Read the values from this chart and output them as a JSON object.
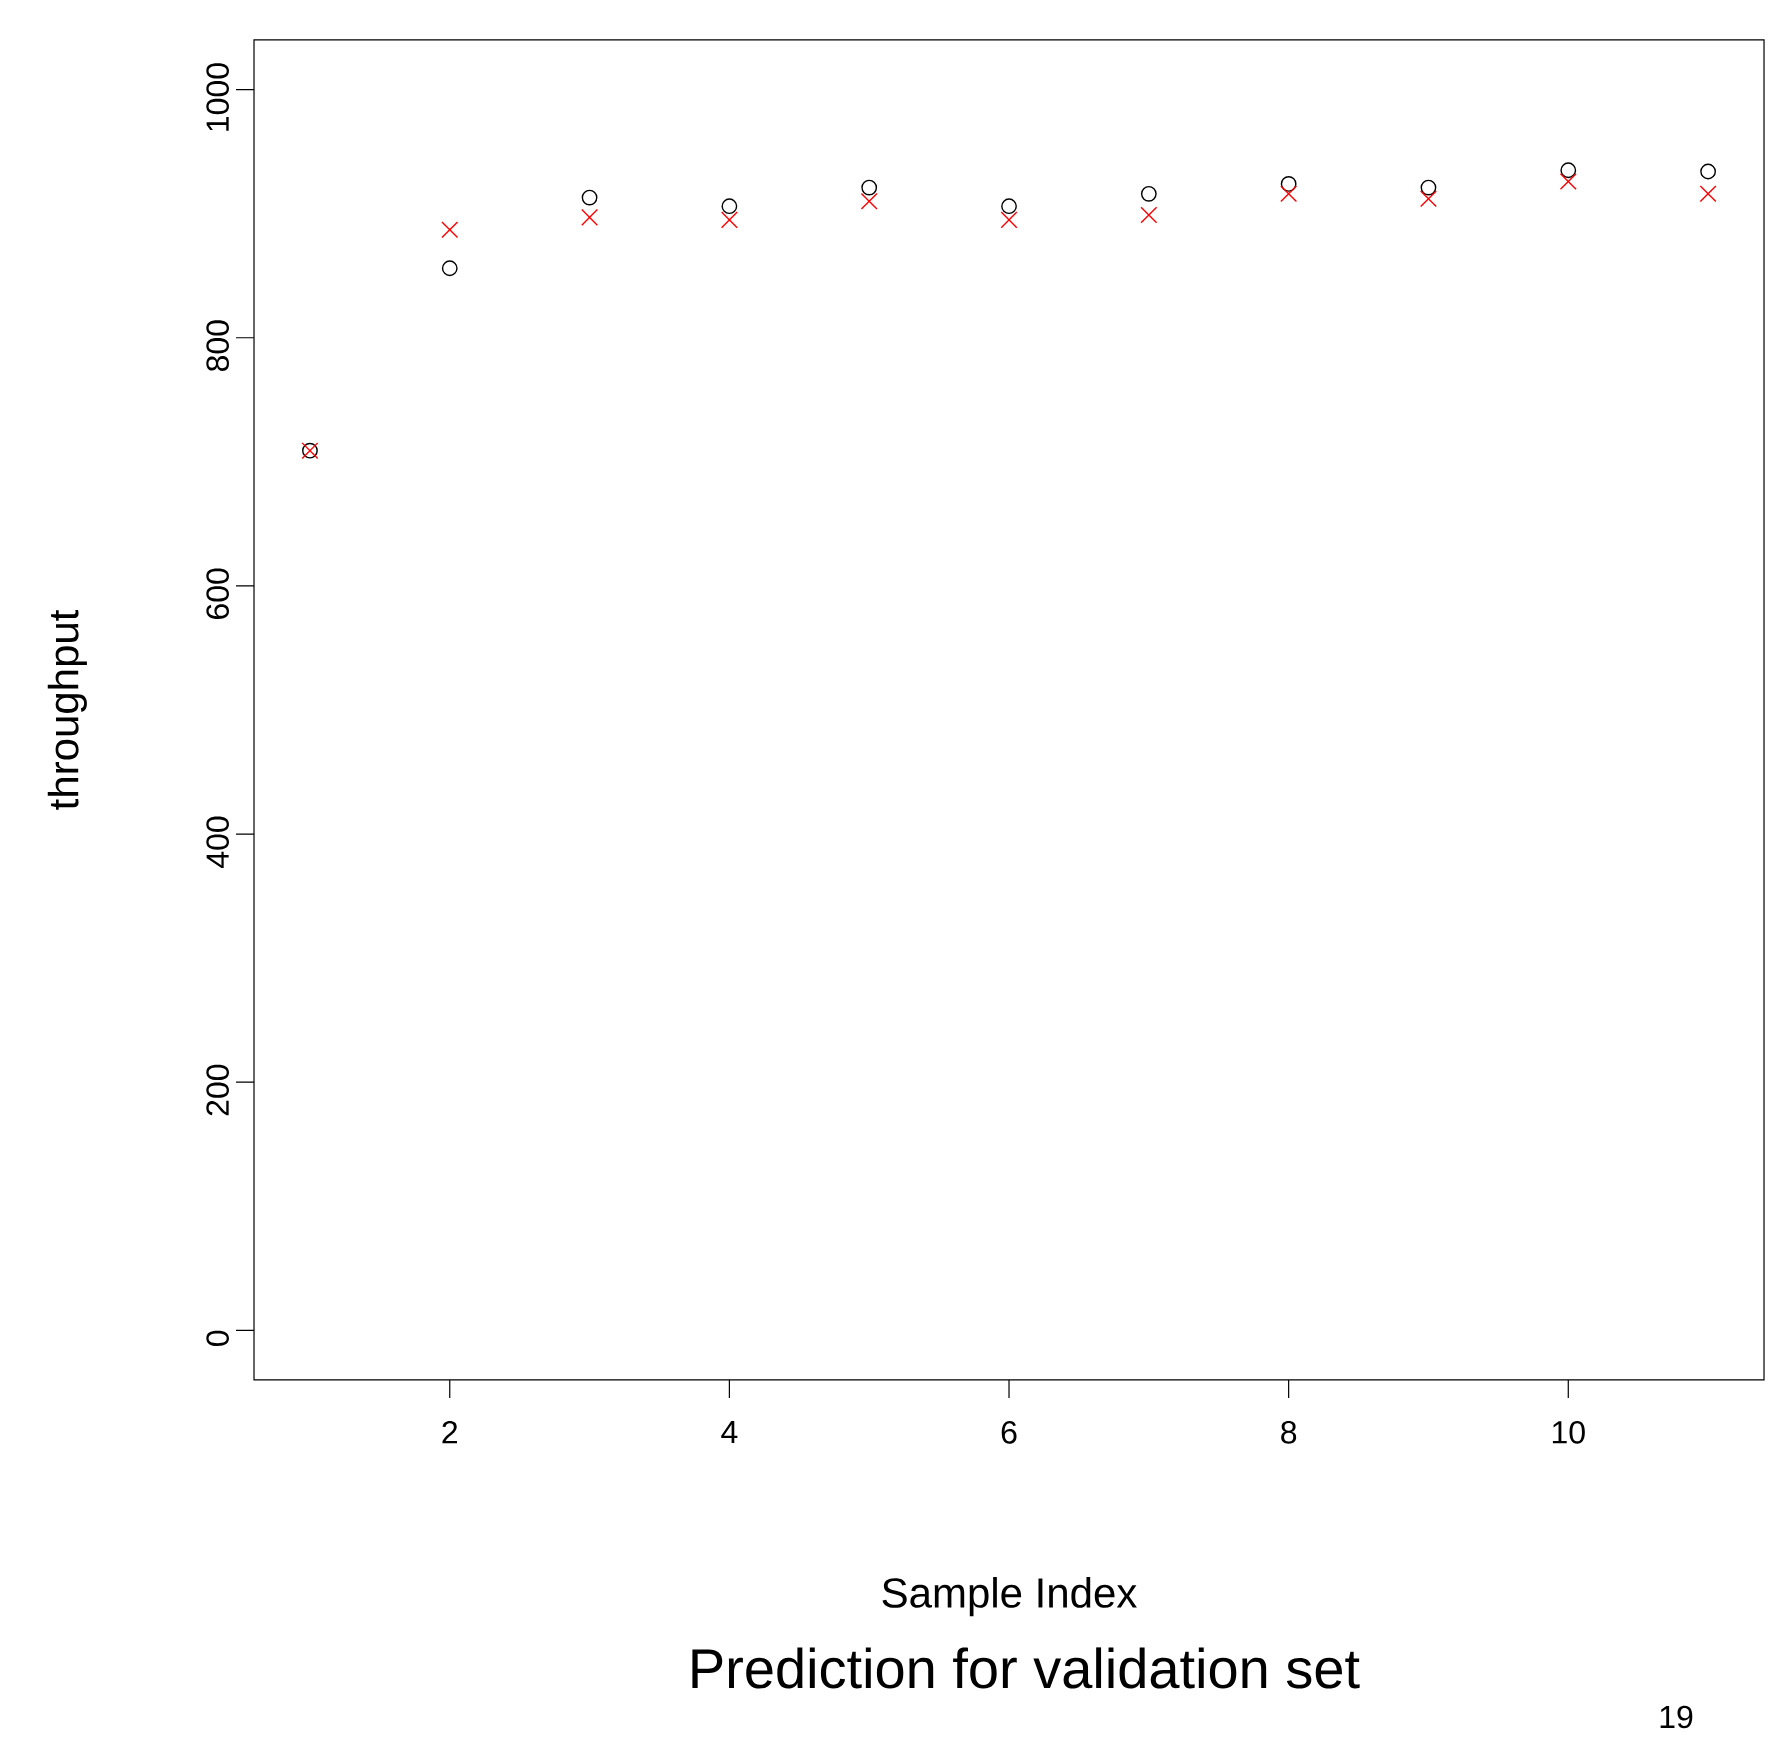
{
  "chart_data": {
    "type": "scatter",
    "title": "Prediction for validation set",
    "xlabel": "Sample Index",
    "ylabel": "throughput",
    "annotations": [
      "19"
    ],
    "x": [
      1,
      2,
      3,
      4,
      5,
      6,
      7,
      8,
      9,
      10,
      11
    ],
    "series": [
      {
        "color": "#000000",
        "marker": "circle",
        "values": [
          709,
          856,
          913,
          906,
          921,
          906,
          916,
          924,
          921,
          935,
          934
        ]
      },
      {
        "color": "#ff0000",
        "marker": "cross",
        "values": [
          709,
          887,
          897,
          895,
          910,
          895,
          899,
          916,
          912,
          926,
          916
        ]
      }
    ],
    "xlim": [
      0.6,
      11.4
    ],
    "ylim": [
      -40,
      1040
    ],
    "xticks": [
      2,
      4,
      6,
      8,
      10
    ],
    "yticks": [
      0,
      200,
      400,
      600,
      800,
      1000
    ],
    "grid": false
  }
}
